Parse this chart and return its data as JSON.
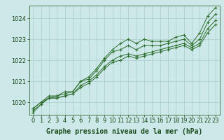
{
  "background_color": "#cce8e8",
  "plot_bg_color": "#cce8e8",
  "grid_color": "#aacccc",
  "line_color": "#2d6e2d",
  "xlabel": "Graphe pression niveau de la mer (hPa)",
  "ylim": [
    1019.4,
    1024.6
  ],
  "xlim": [
    -0.5,
    23.5
  ],
  "yticks": [
    1020,
    1021,
    1022,
    1023,
    1024
  ],
  "xticks": [
    0,
    1,
    2,
    3,
    4,
    5,
    6,
    7,
    8,
    9,
    10,
    11,
    12,
    13,
    14,
    15,
    16,
    17,
    18,
    19,
    20,
    21,
    22,
    23
  ],
  "series": [
    [
      1019.7,
      1020.0,
      1020.3,
      1020.3,
      1020.4,
      1020.5,
      1021.0,
      1021.2,
      1021.6,
      1022.1,
      1022.5,
      1022.8,
      1023.0,
      1022.8,
      1023.0,
      1022.9,
      1022.9,
      1022.9,
      1023.1,
      1023.2,
      1022.8,
      1023.3,
      1024.1,
      1024.5
    ],
    [
      1019.7,
      1020.0,
      1020.2,
      1020.3,
      1020.5,
      1020.5,
      1021.0,
      1021.1,
      1021.5,
      1022.0,
      1022.4,
      1022.5,
      1022.7,
      1022.5,
      1022.7,
      1022.7,
      1022.7,
      1022.8,
      1022.9,
      1023.0,
      1022.7,
      1023.0,
      1023.8,
      1024.2
    ],
    [
      1019.6,
      1019.9,
      1020.2,
      1020.2,
      1020.3,
      1020.4,
      1020.8,
      1021.0,
      1021.3,
      1021.7,
      1022.0,
      1022.2,
      1022.3,
      1022.2,
      1022.3,
      1022.4,
      1022.5,
      1022.6,
      1022.7,
      1022.8,
      1022.6,
      1022.8,
      1023.5,
      1023.9
    ],
    [
      1019.5,
      1019.9,
      1020.2,
      1020.2,
      1020.3,
      1020.4,
      1020.7,
      1020.9,
      1021.2,
      1021.6,
      1021.9,
      1022.0,
      1022.2,
      1022.1,
      1022.2,
      1022.3,
      1022.4,
      1022.5,
      1022.6,
      1022.7,
      1022.5,
      1022.7,
      1023.3,
      1023.7
    ]
  ],
  "tick_fontsize": 6,
  "xlabel_fontsize": 7,
  "tick_color": "#1a4a1a",
  "spine_color": "#3a6a3a"
}
